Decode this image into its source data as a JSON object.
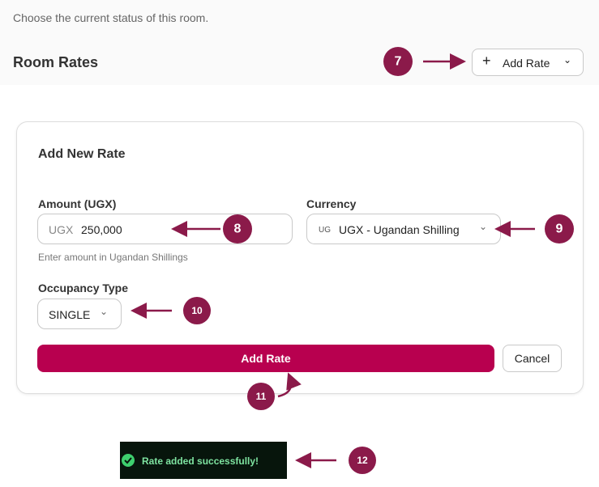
{
  "header": {
    "hint": "Choose the current status of this room.",
    "title": "Room Rates",
    "add_button": "Add Rate"
  },
  "form": {
    "title": "Add New Rate",
    "amount": {
      "label": "Amount (UGX)",
      "prefix": "UGX",
      "value": "250,000",
      "help": "Enter amount in Ugandan Shillings"
    },
    "currency": {
      "label": "Currency",
      "code": "UG",
      "value": "UGX - Ugandan Shilling"
    },
    "occupancy": {
      "label": "Occupancy Type",
      "value": "SINGLE"
    },
    "submit": "Add Rate",
    "cancel": "Cancel"
  },
  "toast": {
    "message": "Rate added successfully!"
  },
  "callouts": [
    "7",
    "8",
    "9",
    "10",
    "11",
    "12"
  ]
}
